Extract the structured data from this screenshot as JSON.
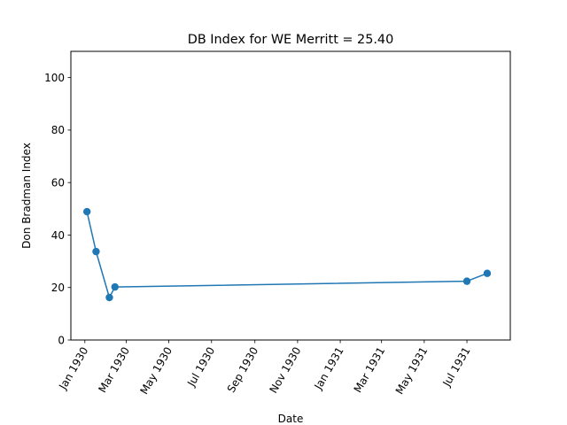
{
  "chart_data": {
    "type": "line",
    "title": "DB Index for WE Merritt = 25.40",
    "xlabel": "Date",
    "ylabel": "Don Bradman Index",
    "ylim": [
      0,
      110
    ],
    "xlim": [
      "1929-12-12",
      "1931-09-01"
    ],
    "grid": false,
    "yticks": [
      0,
      20,
      40,
      60,
      80,
      100
    ],
    "xticks": [
      {
        "date": "1930-01-01",
        "label": "Jan 1930"
      },
      {
        "date": "1930-03-01",
        "label": "Mar 1930"
      },
      {
        "date": "1930-05-01",
        "label": "May 1930"
      },
      {
        "date": "1930-07-01",
        "label": "Jul 1930"
      },
      {
        "date": "1930-09-01",
        "label": "Sep 1930"
      },
      {
        "date": "1930-11-01",
        "label": "Nov 1930"
      },
      {
        "date": "1931-01-01",
        "label": "Jan 1931"
      },
      {
        "date": "1931-03-01",
        "label": "Mar 1931"
      },
      {
        "date": "1931-05-01",
        "label": "May 1931"
      },
      {
        "date": "1931-07-01",
        "label": "Jul 1931"
      }
    ],
    "series": [
      {
        "color": "#1f77b4",
        "x": [
          "1930-01-04",
          "1930-01-17",
          "1930-02-05",
          "1930-02-13",
          "1931-07-01",
          "1931-07-30"
        ],
        "y": [
          48.9,
          33.7,
          16.2,
          20.2,
          22.4,
          25.4
        ]
      }
    ]
  }
}
